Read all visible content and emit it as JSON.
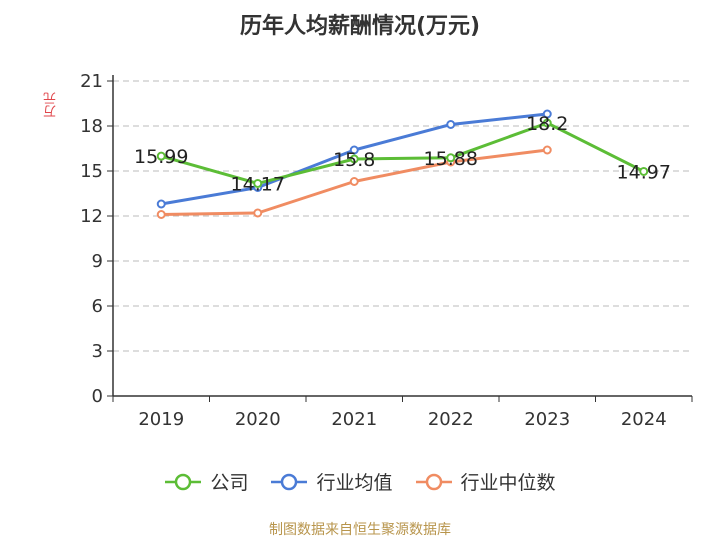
{
  "chart_data": {
    "type": "line",
    "title": "历年人均薪酬情况(万元)",
    "ylabel": "万元",
    "categories": [
      "2019",
      "2020",
      "2021",
      "2022",
      "2023",
      "2024"
    ],
    "ylim": [
      0,
      21
    ],
    "yticks": [
      0,
      3,
      6,
      9,
      12,
      15,
      18,
      21
    ],
    "grid": true,
    "legend_position": "bottom",
    "series": [
      {
        "name": "公司",
        "color": "#5cbd36",
        "values": [
          15.99,
          14.17,
          15.8,
          15.88,
          18.2,
          14.97
        ],
        "labels": [
          "15.99",
          "14.17",
          "15.8",
          "15.88",
          "18.2",
          "14.97"
        ]
      },
      {
        "name": "行业均值",
        "color": "#4a7bd6",
        "values": [
          12.8,
          13.9,
          16.4,
          18.1,
          18.8,
          null
        ]
      },
      {
        "name": "行业中位数",
        "color": "#f08c62",
        "values": [
          12.1,
          12.2,
          14.3,
          15.6,
          16.4,
          null
        ]
      }
    ]
  },
  "source": "制图数据来自恒生聚源数据库"
}
